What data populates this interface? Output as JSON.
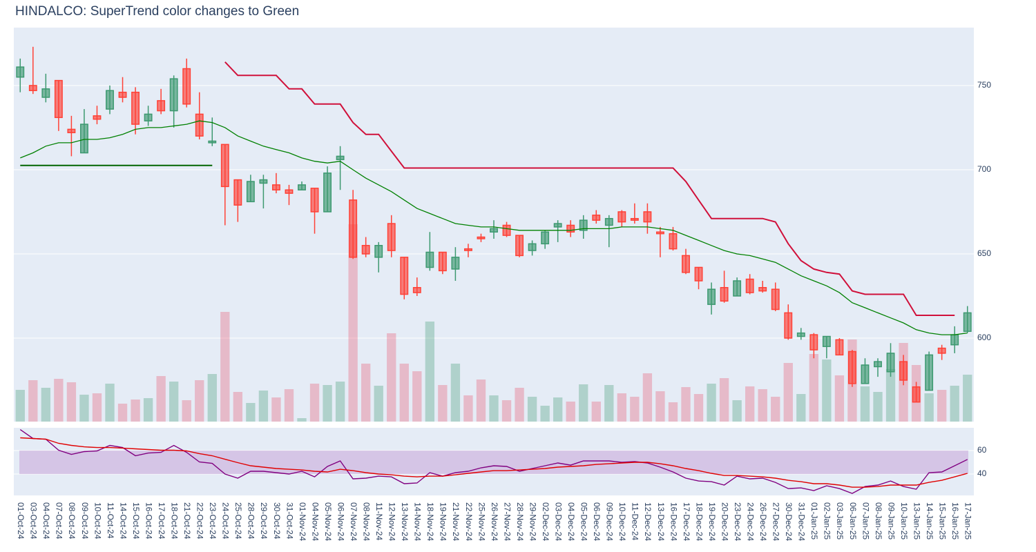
{
  "chart_data": [
    {
      "type": "candlestick",
      "title": "HINDALCO: SuperTrend color changes to Green",
      "categories": [
        "01-Oct-24",
        "03-Oct-24",
        "04-Oct-24",
        "07-Oct-24",
        "08-Oct-24",
        "09-Oct-24",
        "10-Oct-24",
        "11-Oct-24",
        "14-Oct-24",
        "15-Oct-24",
        "16-Oct-24",
        "17-Oct-24",
        "18-Oct-24",
        "21-Oct-24",
        "22-Oct-24",
        "23-Oct-24",
        "24-Oct-24",
        "25-Oct-24",
        "28-Oct-24",
        "29-Oct-24",
        "30-Oct-24",
        "31-Oct-24",
        "01-Nov-24",
        "04-Nov-24",
        "05-Nov-24",
        "06-Nov-24",
        "07-Nov-24",
        "08-Nov-24",
        "11-Nov-24",
        "12-Nov-24",
        "13-Nov-24",
        "14-Nov-24",
        "18-Nov-24",
        "19-Nov-24",
        "21-Nov-24",
        "22-Nov-24",
        "25-Nov-24",
        "26-Nov-24",
        "27-Nov-24",
        "28-Nov-24",
        "29-Nov-24",
        "02-Dec-24",
        "03-Dec-24",
        "04-Dec-24",
        "05-Dec-24",
        "06-Dec-24",
        "09-Dec-24",
        "10-Dec-24",
        "11-Dec-24",
        "12-Dec-24",
        "13-Dec-24",
        "16-Dec-24",
        "17-Dec-24",
        "18-Dec-24",
        "19-Dec-24",
        "20-Dec-24",
        "23-Dec-24",
        "24-Dec-24",
        "26-Dec-24",
        "27-Dec-24",
        "30-Dec-24",
        "31-Dec-24",
        "01-Jan-25",
        "02-Jan-25",
        "03-Jan-25",
        "06-Jan-25",
        "07-Jan-25",
        "08-Jan-25",
        "09-Jan-25",
        "10-Jan-25",
        "13-Jan-25",
        "14-Jan-25",
        "15-Jan-25",
        "16-Jan-25",
        "17-Jan-25"
      ],
      "open": [
        755,
        750,
        743,
        753,
        724,
        710,
        732,
        736,
        746,
        746,
        729,
        741,
        735,
        760,
        733,
        716,
        715,
        694,
        681,
        692,
        691,
        688,
        688,
        689,
        675,
        706,
        682,
        655,
        648,
        668,
        648,
        630,
        642,
        651,
        641,
        653,
        660,
        663,
        667,
        661,
        652,
        656,
        666,
        667,
        664,
        673,
        667,
        675,
        671,
        675,
        663,
        662,
        649,
        642,
        620,
        630,
        625,
        635,
        630,
        629,
        615,
        601,
        602,
        595,
        599,
        592,
        573,
        583,
        580,
        586,
        571,
        569,
        594,
        596,
        604
      ],
      "high": [
        766,
        773,
        757,
        753,
        732,
        736,
        738,
        750,
        755,
        749,
        738,
        748,
        756,
        766,
        746,
        731,
        715,
        694,
        697,
        697,
        698,
        691,
        693,
        689,
        702,
        714,
        688,
        660,
        657,
        673,
        648,
        636,
        663,
        651,
        654,
        656,
        662,
        670,
        669,
        661,
        658,
        664,
        670,
        670,
        673,
        676,
        673,
        676,
        680,
        680,
        666,
        666,
        653,
        642,
        633,
        640,
        636,
        638,
        634,
        633,
        620,
        606,
        603,
        601,
        600,
        593,
        588,
        588,
        597,
        590,
        574,
        592,
        596,
        607,
        619
      ],
      "low": [
        746,
        745,
        740,
        723,
        708,
        710,
        727,
        733,
        740,
        721,
        726,
        733,
        725,
        737,
        718,
        714,
        667,
        669,
        681,
        677,
        686,
        679,
        688,
        662,
        675,
        688,
        647,
        648,
        639,
        648,
        623,
        625,
        640,
        638,
        634,
        648,
        657,
        659,
        660,
        648,
        649,
        653,
        657,
        660,
        659,
        668,
        654,
        666,
        668,
        662,
        648,
        652,
        638,
        629,
        614,
        621,
        625,
        626,
        627,
        616,
        599,
        599,
        588,
        588,
        590,
        571,
        573,
        577,
        577,
        572,
        562,
        569,
        587,
        591,
        603
      ],
      "close": [
        761,
        747,
        748,
        731,
        722,
        727,
        730,
        747,
        743,
        727,
        733,
        735,
        754,
        739,
        720,
        717,
        690,
        679,
        693,
        694,
        688,
        686,
        691,
        675,
        698,
        708,
        648,
        650,
        655,
        652,
        626,
        627,
        651,
        640,
        648,
        652,
        659,
        665,
        661,
        649,
        656,
        663,
        668,
        663,
        670,
        670,
        671,
        669,
        670,
        669,
        662,
        653,
        639,
        634,
        629,
        622,
        634,
        627,
        628,
        617,
        600,
        603,
        593,
        601,
        590,
        573,
        584,
        586,
        591,
        575,
        562,
        590,
        591,
        602,
        615
      ],
      "increasing_color": "#3d9970",
      "decreasing_color": "#ff4136",
      "series": [
        {
          "color": "#008000",
          "values": [
            707,
            710,
            714,
            716,
            716,
            718,
            718,
            719,
            721,
            724,
            725,
            725,
            726,
            727,
            729,
            728,
            725,
            720,
            717,
            714,
            712,
            710,
            707,
            705,
            704,
            705,
            700,
            695,
            691,
            687,
            682,
            677,
            674,
            671,
            668,
            667,
            666,
            666,
            665,
            664,
            664,
            664,
            664,
            664,
            665,
            665,
            665,
            666,
            666,
            666,
            665,
            664,
            661,
            658,
            655,
            652,
            650,
            649,
            647,
            645,
            641,
            637,
            634,
            631,
            627,
            621,
            618,
            615,
            612,
            609,
            605,
            603,
            602,
            602,
            603
          ]
        },
        {
          "color": "#006400",
          "values": [
            702.5,
            702.5,
            702.5,
            702.5,
            702.5,
            702.5,
            702.5,
            702.5,
            702.5,
            702.5,
            702.5,
            702.5,
            702.5,
            702.5,
            702.5,
            702.5,
            null,
            null,
            null,
            null,
            null,
            null,
            null,
            null,
            null,
            null,
            null,
            null,
            null,
            null,
            null,
            null,
            null,
            null,
            null,
            null,
            null,
            null,
            null,
            null,
            null,
            null,
            null,
            null,
            null,
            null,
            null,
            null,
            null,
            null,
            null,
            null,
            null,
            null,
            null,
            null,
            null,
            null,
            null,
            null,
            null,
            null,
            null,
            null,
            null,
            null,
            null,
            null,
            null,
            null,
            null,
            null,
            null,
            null,
            null
          ]
        },
        {
          "color": "#d0103a",
          "values": [
            null,
            null,
            null,
            null,
            null,
            null,
            null,
            null,
            null,
            null,
            null,
            null,
            null,
            null,
            null,
            null,
            764,
            756,
            756,
            756,
            756,
            748,
            748,
            739,
            739,
            739,
            728,
            721,
            721,
            711,
            701,
            701,
            701,
            701,
            701,
            701,
            701,
            701,
            701,
            701,
            701,
            701,
            701,
            701,
            701,
            701,
            701,
            701,
            701,
            701,
            701,
            701,
            693,
            682,
            671,
            671,
            671,
            671,
            671,
            669,
            656,
            646,
            641,
            639,
            638,
            628,
            626,
            626,
            626,
            626,
            613.5,
            613.5,
            613.5,
            613.5,
            null
          ]
        }
      ],
      "volume": {
        "ylim": [
          0,
          571
        ],
        "increasing_color": "#3d9970",
        "decreasing_color": "#e8506a",
        "values": [
          46,
          60,
          49,
          62,
          57,
          39,
          41,
          55,
          26,
          32,
          34,
          66,
          58,
          31,
          60,
          69,
          159,
          43,
          27,
          45,
          35,
          47,
          5,
          55,
          53,
          58,
          286,
          84,
          52,
          128,
          84,
          73,
          145,
          53,
          84,
          38,
          61,
          38,
          31,
          49,
          36,
          23,
          35,
          29,
          54,
          29,
          53,
          41,
          36,
          70,
          44,
          28,
          50,
          40,
          55,
          63,
          31,
          51,
          47,
          36,
          85,
          40,
          98,
          90,
          67,
          119,
          51,
          43,
          76,
          114,
          82,
          41,
          46,
          52,
          68
        ]
      },
      "ylim": [
        550.4,
        784.4
      ],
      "yticks": [
        600,
        650,
        700,
        750
      ],
      "grid": true
    },
    {
      "type": "line",
      "series": [
        {
          "color": "#800080",
          "values": [
            77.9,
            70.3,
            69.7,
            60.3,
            56.8,
            59.1,
            59.7,
            64.4,
            62.6,
            55.6,
            57.9,
            58.5,
            64.4,
            58.5,
            50.3,
            49.1,
            40,
            36.5,
            42.4,
            42.4,
            41.2,
            40,
            42.4,
            37.6,
            46.5,
            51.2,
            35.9,
            36.5,
            38.2,
            37.6,
            31.8,
            32.4,
            41.2,
            38.2,
            41.2,
            42.4,
            45.3,
            47.1,
            46.5,
            42.4,
            44.7,
            47.1,
            49.4,
            47.6,
            51.2,
            51.2,
            51.2,
            50,
            50.6,
            49.4,
            45.9,
            41.8,
            36.5,
            34.1,
            33.5,
            30.6,
            38.2,
            35.9,
            36.5,
            32.9,
            27.6,
            28.2,
            25.9,
            30,
            27.6,
            23.5,
            29.4,
            30.6,
            34.1,
            29.4,
            27.1,
            41.2,
            41.8,
            47.1,
            52.4
          ]
        },
        {
          "color": "#e00000",
          "values": [
            70.9,
            70.3,
            69.7,
            66.2,
            64.4,
            63.2,
            62.6,
            62.6,
            62.1,
            61.5,
            60.9,
            60.3,
            60.3,
            59.7,
            57.4,
            55.6,
            52.6,
            49.7,
            47.1,
            45.9,
            44.7,
            44.1,
            43.5,
            42.4,
            41.8,
            44.1,
            42.9,
            41.2,
            40,
            39.4,
            38.2,
            37.6,
            38.2,
            38.2,
            39.4,
            40.6,
            41.8,
            42.9,
            42.9,
            43.5,
            44.1,
            44.7,
            45.9,
            46.5,
            47.1,
            48.2,
            48.8,
            49.4,
            50,
            50,
            48.8,
            47.1,
            44.7,
            42.9,
            40.6,
            38.8,
            38.8,
            38.2,
            37.6,
            36.5,
            34.7,
            33.5,
            31.8,
            31.8,
            30.6,
            28.8,
            28.8,
            29.4,
            30.6,
            30.6,
            30.6,
            32.9,
            34.7,
            37.6,
            40.6
          ]
        }
      ],
      "band": [
        40,
        60
      ],
      "band_color": "#c9a6d9",
      "ylim": [
        21.8,
        79.4
      ],
      "yticks": [
        40,
        60
      ],
      "grid": true
    }
  ]
}
